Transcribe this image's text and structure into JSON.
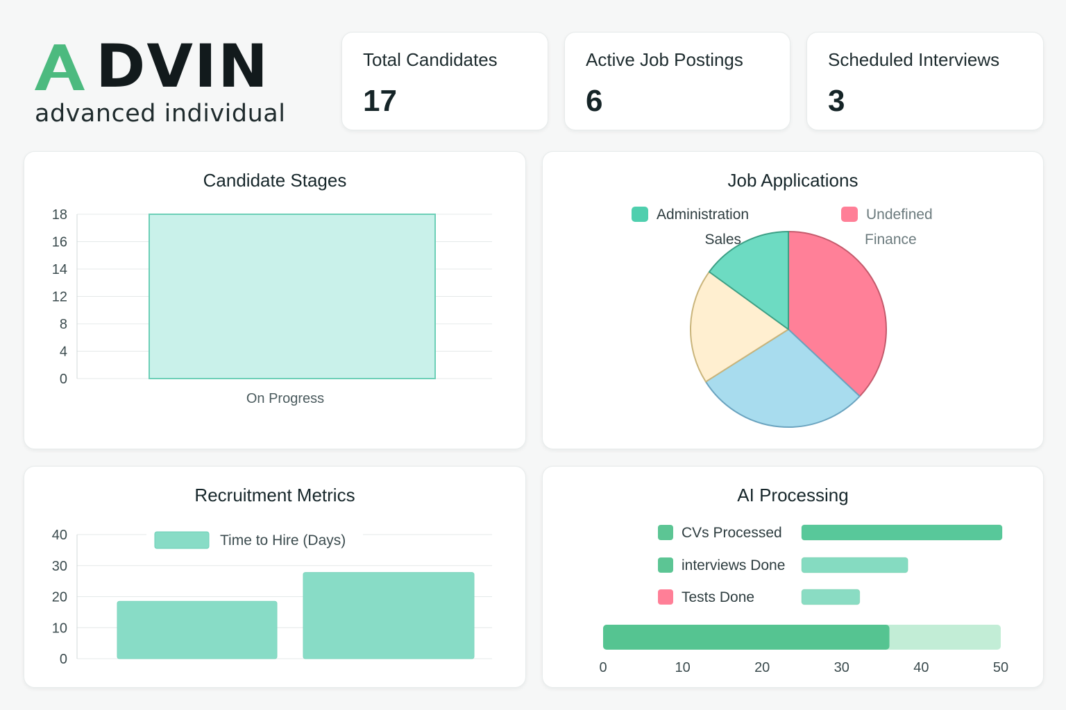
{
  "logo": {
    "word": "DVIN",
    "tagline": "advanced individual",
    "brand_color": "#4cba7f"
  },
  "stats": [
    {
      "label": "Total Candidates",
      "value": "17"
    },
    {
      "label": "Active Job Postings",
      "value": "6"
    },
    {
      "label": "Scheduled Interviews",
      "value": "3"
    }
  ],
  "panels": {
    "stages": {
      "title": "Candidate Stages"
    },
    "applications": {
      "title": "Job Applications"
    },
    "metrics": {
      "title": "Recruitment Metrics"
    },
    "ai": {
      "title": "AI Processing"
    }
  },
  "chart_data": [
    {
      "id": "candidate-stages",
      "type": "bar",
      "title": "Candidate Stages",
      "categories": [
        "On Progress"
      ],
      "values": [
        18
      ],
      "y_ticks": [
        "0",
        "4",
        "8",
        "12",
        "14",
        "16",
        "18"
      ],
      "grid": true,
      "color": "#6ccfb7",
      "fill": "#c9f1ea"
    },
    {
      "id": "job-applications",
      "type": "pie",
      "title": "Job Applications",
      "legend": [
        {
          "name": "Administration",
          "color": "#4fcfae"
        },
        {
          "name": "Undefined",
          "color": "#ff7f97"
        },
        {
          "name": "Sales",
          "color": ""
        },
        {
          "name": "Finance",
          "color": ""
        }
      ],
      "slices": [
        {
          "value": 37,
          "color": "#ff8098",
          "stroke": "#c45a6c"
        },
        {
          "value": 29,
          "color": "#a8dcee",
          "stroke": "#6aa3bf"
        },
        {
          "value": 19,
          "color": "#ffefd0",
          "stroke": "#c9b47a"
        },
        {
          "value": 15,
          "color": "#6ddbc2",
          "stroke": "#3c9f85"
        }
      ]
    },
    {
      "id": "recruitment-metrics",
      "type": "bar",
      "title": "Recruitment Metrics",
      "series": [
        {
          "name": "Time to Hire (Days)",
          "values": [
            18.5,
            27.8
          ]
        }
      ],
      "categories": [
        "",
        ""
      ],
      "ylim": [
        0,
        40
      ],
      "y_ticks": [
        "0",
        "10",
        "20",
        "30",
        "40"
      ],
      "grid": true,
      "color": "#88dcc6"
    },
    {
      "id": "ai-processing",
      "type": "bar",
      "title": "AI Processing",
      "orientation": "horizontal",
      "legend": [
        {
          "name": "CVs Processed",
          "color": "#5cc594",
          "value": 1.0
        },
        {
          "name": "interviews Done",
          "color": "#5cc594",
          "value": 0.53
        },
        {
          "name": "Tests Done",
          "color": "#ff7f97",
          "value": 0.29
        }
      ],
      "xlim": [
        0,
        50
      ],
      "x_ticks": [
        "0",
        "10",
        "20",
        "30",
        "40",
        "50"
      ],
      "progress": {
        "value": 36,
        "track_color": "#c2edd6",
        "fill_color": "#55c491"
      }
    }
  ]
}
